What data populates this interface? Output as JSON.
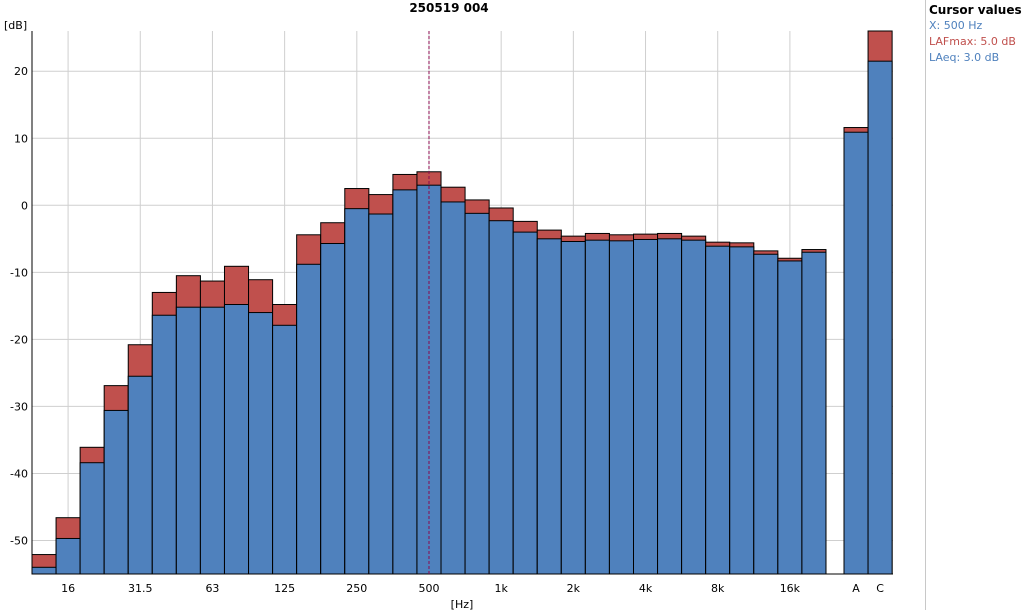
{
  "chart_data": {
    "type": "bar",
    "title": "250519 004",
    "ylabel": "[dB]",
    "xlabel": "[Hz]",
    "ylim": [
      -55,
      26
    ],
    "yticks": [
      20,
      10,
      0,
      -10,
      -20,
      -30,
      -40,
      -50
    ],
    "categories": [
      "12.5",
      "16",
      "20",
      "25",
      "31.5",
      "40",
      "50",
      "63",
      "80",
      "100",
      "125",
      "160",
      "200",
      "250",
      "315",
      "400",
      "500",
      "630",
      "800",
      "1k",
      "1.25k",
      "1.6k",
      "2k",
      "2.5k",
      "3.15k",
      "4k",
      "5k",
      "6.3k",
      "8k",
      "10k",
      "12.5k",
      "16k",
      "20k"
    ],
    "tick_labels": [
      "16",
      "31.5",
      "63",
      "125",
      "250",
      "500",
      "1k",
      "2k",
      "4k",
      "8k",
      "16k"
    ],
    "series": [
      {
        "name": "LAeq",
        "color": "#4f81bd",
        "values": [
          -54.0,
          -49.7,
          -38.4,
          -30.6,
          -25.5,
          -16.4,
          -15.2,
          -15.2,
          -14.8,
          -16.0,
          -17.9,
          -8.8,
          -5.7,
          -0.5,
          -1.3,
          2.3,
          3.0,
          0.5,
          -1.2,
          -2.3,
          -4.0,
          -5.0,
          -5.4,
          -5.2,
          -5.3,
          -5.1,
          -5.0,
          -5.2,
          -6.1,
          -6.2,
          -7.3,
          -8.3,
          -7.0
        ]
      },
      {
        "name": "LAFmax",
        "color": "#c0504d",
        "values": [
          -52.1,
          -46.6,
          -36.1,
          -26.9,
          -20.8,
          -13.0,
          -10.5,
          -11.3,
          -9.1,
          -11.1,
          -14.8,
          -4.4,
          -2.6,
          2.5,
          1.6,
          4.6,
          5.0,
          2.7,
          0.8,
          -0.4,
          -2.4,
          -3.7,
          -4.6,
          -4.2,
          -4.4,
          -4.3,
          -4.2,
          -4.6,
          -5.5,
          -5.6,
          -6.8,
          -7.9,
          -6.6
        ]
      }
    ],
    "totals": {
      "categories": [
        "A",
        "C"
      ],
      "LAeq": [
        10.9,
        21.5
      ],
      "LAFmax": [
        11.6,
        26.0
      ]
    },
    "cursor_x": "500",
    "grid": true
  },
  "cursor_panel": {
    "title": "Cursor values",
    "x": "X: 500 Hz",
    "lafmax": "LAFmax: 5.0 dB",
    "laeq": "LAeq: 3.0 dB"
  }
}
